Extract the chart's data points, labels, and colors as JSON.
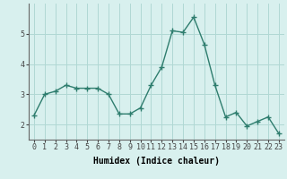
{
  "x": [
    0,
    1,
    2,
    3,
    4,
    5,
    6,
    7,
    8,
    9,
    10,
    11,
    12,
    13,
    14,
    15,
    16,
    17,
    18,
    19,
    20,
    21,
    22,
    23
  ],
  "y": [
    2.3,
    3.0,
    3.1,
    3.3,
    3.2,
    3.2,
    3.2,
    3.0,
    2.35,
    2.35,
    2.55,
    3.3,
    3.9,
    5.1,
    5.05,
    5.55,
    4.65,
    3.3,
    2.25,
    2.4,
    1.95,
    2.1,
    2.25,
    1.7
  ],
  "line_color": "#2e7d6e",
  "marker": "+",
  "marker_size": 4,
  "background_color": "#d8f0ee",
  "grid_color": "#b0d8d4",
  "xlabel": "Humidex (Indice chaleur)",
  "ylim": [
    1.5,
    6.0
  ],
  "xlim": [
    -0.5,
    23.5
  ],
  "yticks": [
    2,
    3,
    4,
    5
  ],
  "xticks": [
    0,
    1,
    2,
    3,
    4,
    5,
    6,
    7,
    8,
    9,
    10,
    11,
    12,
    13,
    14,
    15,
    16,
    17,
    18,
    19,
    20,
    21,
    22,
    23
  ],
  "xlabel_fontsize": 7,
  "tick_fontsize": 6,
  "line_width": 1.0
}
